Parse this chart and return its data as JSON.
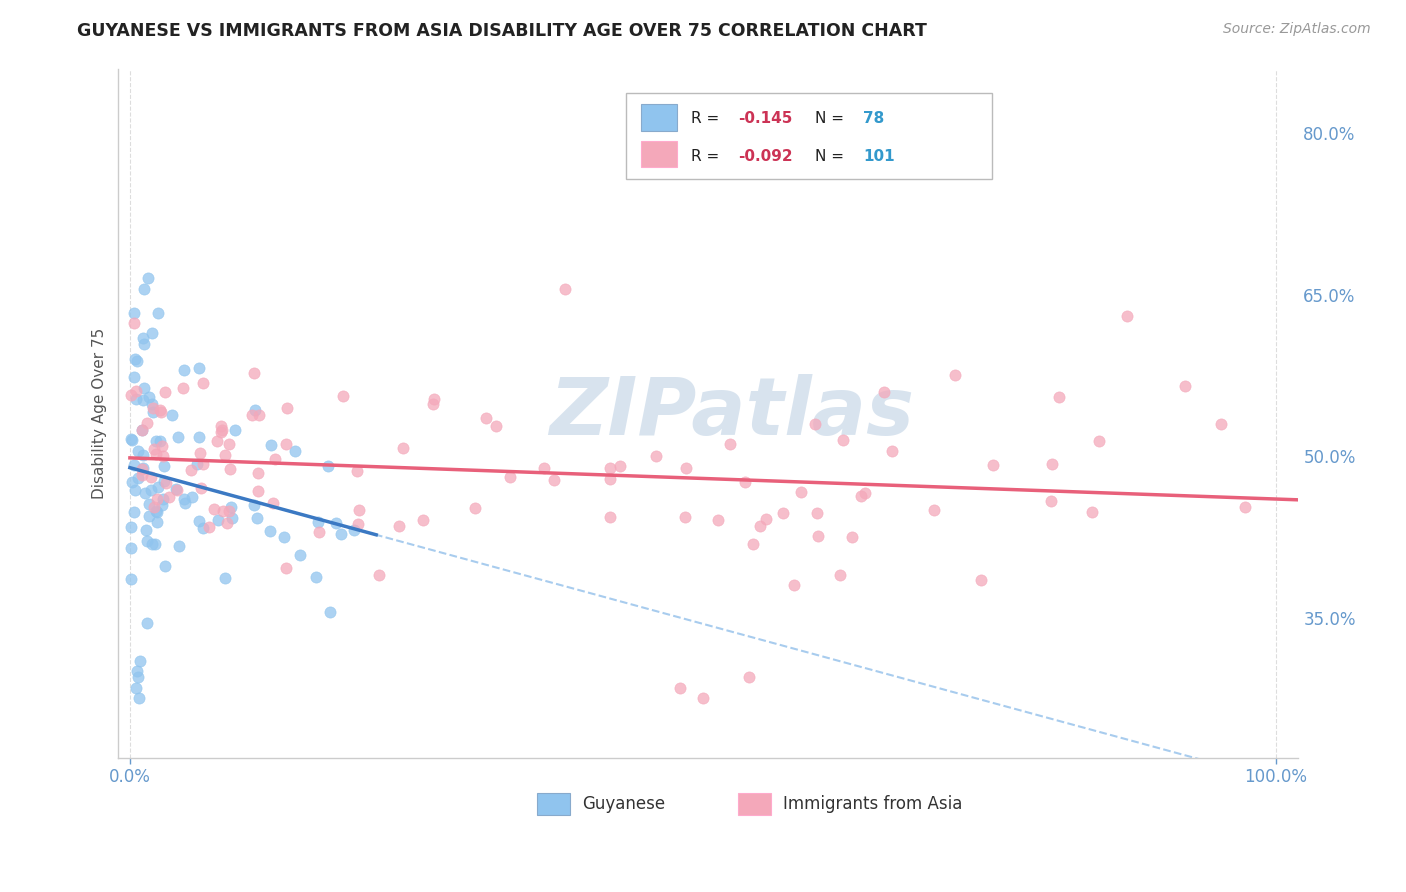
{
  "title": "GUYANESE VS IMMIGRANTS FROM ASIA DISABILITY AGE OVER 75 CORRELATION CHART",
  "source": "Source: ZipAtlas.com",
  "ylabel": "Disability Age Over 75",
  "xlim": [
    -0.01,
    1.02
  ],
  "ylim": [
    0.22,
    0.86
  ],
  "xtick_positions": [
    0.0,
    1.0
  ],
  "xtick_labels": [
    "0.0%",
    "100.0%"
  ],
  "ytick_positions_right": [
    0.35,
    0.5,
    0.65,
    0.8
  ],
  "ytick_labels_right": [
    "35.0%",
    "50.0%",
    "65.0%",
    "80.0%"
  ],
  "guyanese_R": -0.145,
  "guyanese_N": 78,
  "asia_R": -0.092,
  "asia_N": 101,
  "guyanese_color": "#90C4EE",
  "asia_color": "#F4A8BA",
  "guyanese_line_color": "#3B79C3",
  "asia_line_color": "#E8607A",
  "dashed_line_color": "#A8CCEE",
  "watermark_color": "#C8D8E8",
  "bg_color": "#FFFFFF",
  "title_color": "#222222",
  "source_color": "#999999",
  "axis_label_color": "#555555",
  "tick_color": "#6699CC",
  "grid_color": "#DDDDDD",
  "legend_border_color": "#BBBBBB",
  "legend_text_color": "#3366AA",
  "legend_n_color": "#3399CC"
}
